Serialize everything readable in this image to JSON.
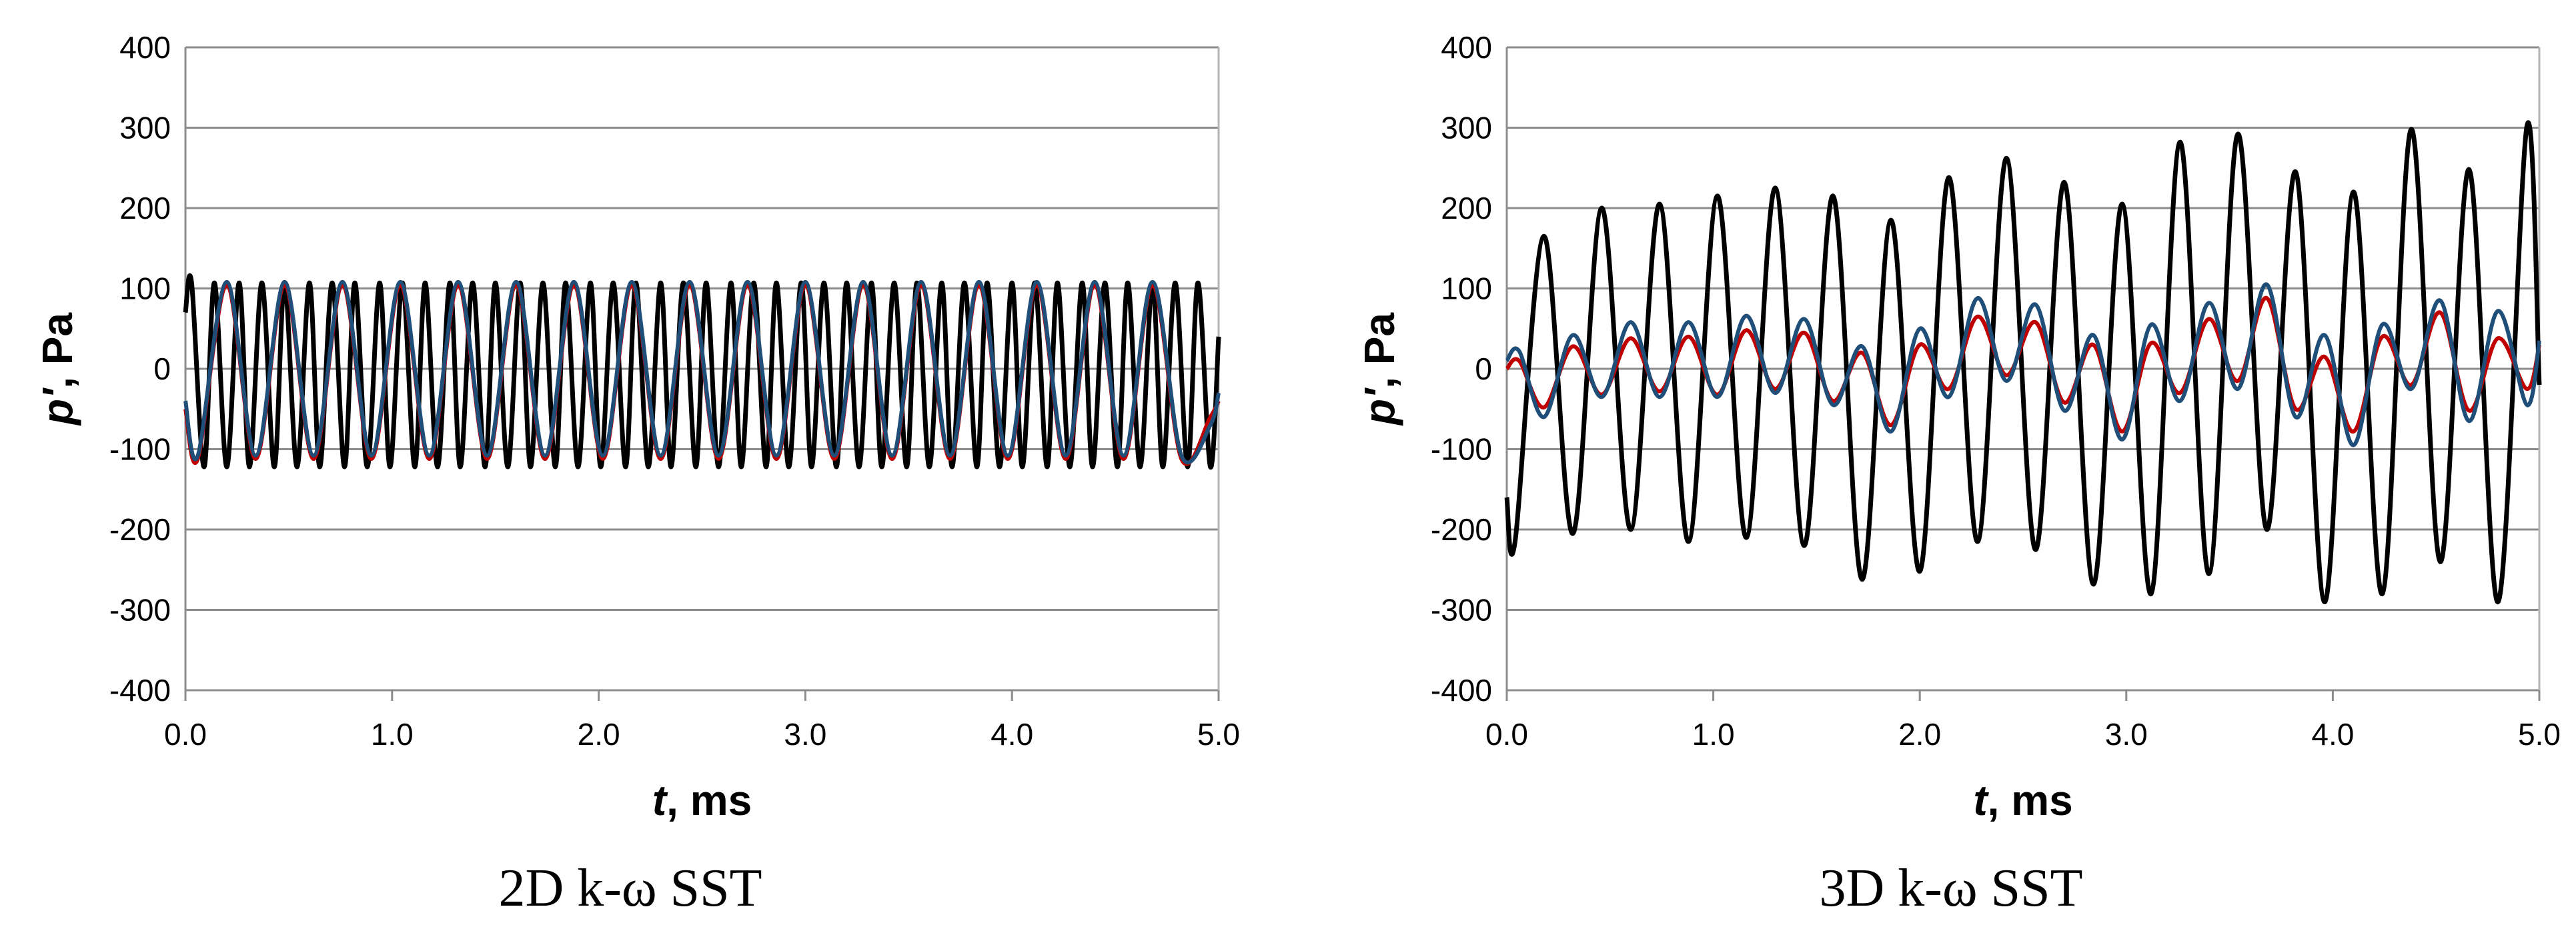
{
  "chart_data": [
    {
      "type": "line",
      "caption": "2D k-ω SST",
      "xlabel_var": "t",
      "xlabel_unit": ", ms",
      "ylabel_var": "p'",
      "ylabel_unit": ", Pa",
      "xlim": [
        0,
        5
      ],
      "ylim": [
        -400,
        400
      ],
      "xticks": [
        "0.0",
        "1.0",
        "2.0",
        "3.0",
        "4.0",
        "5.0"
      ],
      "yticks": [
        "-400",
        "-300",
        "-200",
        "-100",
        "0",
        "100",
        "200",
        "300",
        "400"
      ],
      "grid": "horizontal",
      "series": [
        {
          "color": "#000000",
          "x": [
            0.0,
            0.03,
            0.09,
            0.14,
            0.2,
            0.26,
            0.31,
            0.37,
            0.43,
            0.48,
            0.54,
            0.6,
            0.65,
            0.71,
            0.77,
            0.82,
            0.88,
            0.94,
            0.99,
            1.05,
            1.11,
            1.16,
            1.22,
            1.28,
            1.33,
            1.39,
            1.45,
            1.5,
            1.56,
            1.62,
            1.67,
            1.73,
            1.79,
            1.84,
            1.9,
            1.96,
            2.01,
            2.07,
            2.13,
            2.18,
            2.24,
            2.3,
            2.35,
            2.41,
            2.47,
            2.52,
            2.58,
            2.64,
            2.69,
            2.75,
            2.81,
            2.86,
            2.92,
            2.98,
            3.03,
            3.09,
            3.15,
            3.2,
            3.26,
            3.32,
            3.37,
            3.43,
            3.49,
            3.54,
            3.6,
            3.66,
            3.71,
            3.77,
            3.83,
            3.88,
            3.94,
            4.0,
            4.05,
            4.11,
            4.17,
            4.22,
            4.28,
            4.34,
            4.39,
            4.45,
            4.51,
            4.56,
            4.62,
            4.68,
            4.73,
            4.79,
            4.85,
            4.9,
            4.96,
            5.0
          ],
          "y": [
            70,
            107,
            -122,
            107,
            -122,
            107,
            -122,
            107,
            -122,
            107,
            -122,
            107,
            -122,
            107,
            -122,
            107,
            -122,
            107,
            -122,
            107,
            -122,
            107,
            -122,
            107,
            -122,
            107,
            -122,
            107,
            -122,
            107,
            -122,
            107,
            -122,
            107,
            -122,
            107,
            -122,
            107,
            -122,
            107,
            -122,
            107,
            -122,
            107,
            -122,
            107,
            -122,
            107,
            -122,
            107,
            -122,
            107,
            -122,
            107,
            -122,
            107,
            -122,
            107,
            -122,
            107,
            -122,
            107,
            -122,
            107,
            -122,
            107,
            -122,
            107,
            -122,
            107,
            -122,
            107,
            -122,
            107,
            -122,
            107,
            -122,
            107,
            -122,
            107,
            -122,
            107,
            -122,
            107,
            -122,
            107,
            -122,
            107,
            -122,
            40
          ]
        },
        {
          "color": "#c00000",
          "x": [
            0.0,
            0.06,
            0.2,
            0.34,
            0.48,
            0.62,
            0.76,
            0.9,
            1.04,
            1.18,
            1.32,
            1.46,
            1.6,
            1.74,
            1.88,
            2.02,
            2.16,
            2.3,
            2.44,
            2.58,
            2.72,
            2.86,
            3.0,
            3.14,
            3.28,
            3.42,
            3.56,
            3.7,
            3.84,
            3.98,
            4.12,
            4.26,
            4.4,
            4.54,
            4.68,
            4.82,
            4.96,
            5.0
          ],
          "y": [
            -50,
            -112,
            103,
            -112,
            103,
            -112,
            103,
            -112,
            103,
            -112,
            103,
            -112,
            103,
            -112,
            103,
            -112,
            103,
            -112,
            103,
            -112,
            103,
            -112,
            103,
            -112,
            103,
            -112,
            103,
            -112,
            103,
            -112,
            103,
            -112,
            103,
            -112,
            103,
            -112,
            -60,
            -40
          ]
        },
        {
          "color": "#1f4e79",
          "x": [
            0.0,
            0.06,
            0.2,
            0.34,
            0.48,
            0.62,
            0.76,
            0.9,
            1.04,
            1.18,
            1.32,
            1.46,
            1.6,
            1.74,
            1.88,
            2.02,
            2.16,
            2.3,
            2.44,
            2.58,
            2.72,
            2.86,
            3.0,
            3.14,
            3.28,
            3.42,
            3.56,
            3.7,
            3.84,
            3.98,
            4.12,
            4.26,
            4.4,
            4.54,
            4.68,
            4.82,
            4.96,
            5.0
          ],
          "y": [
            -40,
            -108,
            108,
            -108,
            108,
            -108,
            108,
            -108,
            108,
            -108,
            108,
            -108,
            108,
            -108,
            108,
            -108,
            108,
            -108,
            108,
            -108,
            108,
            -108,
            108,
            -108,
            108,
            -108,
            108,
            -108,
            108,
            -108,
            108,
            -108,
            108,
            -108,
            108,
            -108,
            -70,
            -30
          ]
        }
      ]
    },
    {
      "type": "line",
      "caption": "3D k-ω SST",
      "xlabel_var": "t",
      "xlabel_unit": ", ms",
      "ylabel_var": "p'",
      "ylabel_unit": ", Pa",
      "xlim": [
        0,
        5
      ],
      "ylim": [
        -400,
        400
      ],
      "xticks": [
        "0.0",
        "1.0",
        "2.0",
        "3.0",
        "4.0",
        "5.0"
      ],
      "yticks": [
        "-400",
        "-300",
        "-200",
        "-100",
        "0",
        "100",
        "200",
        "300",
        "400"
      ],
      "grid": "horizontal",
      "series": [
        {
          "color": "#000000",
          "x": [
            0.0,
            0.04,
            0.18,
            0.32,
            0.46,
            0.6,
            0.74,
            0.88,
            1.02,
            1.16,
            1.3,
            1.44,
            1.58,
            1.72,
            1.86,
            2.0,
            2.14,
            2.28,
            2.42,
            2.56,
            2.7,
            2.84,
            2.98,
            3.12,
            3.26,
            3.4,
            3.54,
            3.68,
            3.82,
            3.96,
            4.1,
            4.24,
            4.38,
            4.52,
            4.66,
            4.8,
            4.94,
            5.0
          ],
          "y": [
            -160,
            -215,
            165,
            -205,
            200,
            -200,
            205,
            -215,
            215,
            -210,
            225,
            -220,
            215,
            -262,
            185,
            -252,
            238,
            -215,
            262,
            -225,
            232,
            -268,
            205,
            -280,
            282,
            -255,
            292,
            -200,
            245,
            -290,
            220,
            -280,
            298,
            -240,
            248,
            -290,
            302,
            -20
          ]
        },
        {
          "color": "#c00000",
          "x": [
            0.0,
            0.06,
            0.18,
            0.32,
            0.46,
            0.6,
            0.74,
            0.88,
            1.02,
            1.16,
            1.3,
            1.44,
            1.58,
            1.72,
            1.86,
            2.0,
            2.14,
            2.28,
            2.42,
            2.56,
            2.7,
            2.84,
            2.98,
            3.12,
            3.26,
            3.4,
            3.54,
            3.68,
            3.82,
            3.96,
            4.1,
            4.24,
            4.38,
            4.52,
            4.66,
            4.8,
            4.94,
            5.0
          ],
          "y": [
            0,
            10,
            -48,
            28,
            -32,
            38,
            -28,
            40,
            -32,
            48,
            -25,
            45,
            -40,
            20,
            -70,
            30,
            -25,
            65,
            -8,
            58,
            -42,
            30,
            -78,
            32,
            -30,
            62,
            -15,
            88,
            -50,
            15,
            -78,
            40,
            -20,
            70,
            -52,
            38,
            -25,
            30
          ]
        },
        {
          "color": "#1f4e79",
          "x": [
            0.0,
            0.06,
            0.18,
            0.32,
            0.46,
            0.6,
            0.74,
            0.88,
            1.02,
            1.16,
            1.3,
            1.44,
            1.58,
            1.72,
            1.86,
            2.0,
            2.14,
            2.28,
            2.42,
            2.56,
            2.7,
            2.84,
            2.98,
            3.12,
            3.26,
            3.4,
            3.54,
            3.68,
            3.82,
            3.96,
            4.1,
            4.24,
            4.38,
            4.52,
            4.66,
            4.8,
            4.94,
            5.0
          ],
          "y": [
            10,
            22,
            -60,
            42,
            -35,
            58,
            -35,
            58,
            -35,
            66,
            -30,
            62,
            -45,
            28,
            -78,
            50,
            -35,
            88,
            -15,
            80,
            -52,
            42,
            -88,
            55,
            -40,
            82,
            -25,
            105,
            -60,
            42,
            -95,
            55,
            -25,
            85,
            -65,
            72,
            -45,
            35
          ]
        }
      ]
    }
  ]
}
